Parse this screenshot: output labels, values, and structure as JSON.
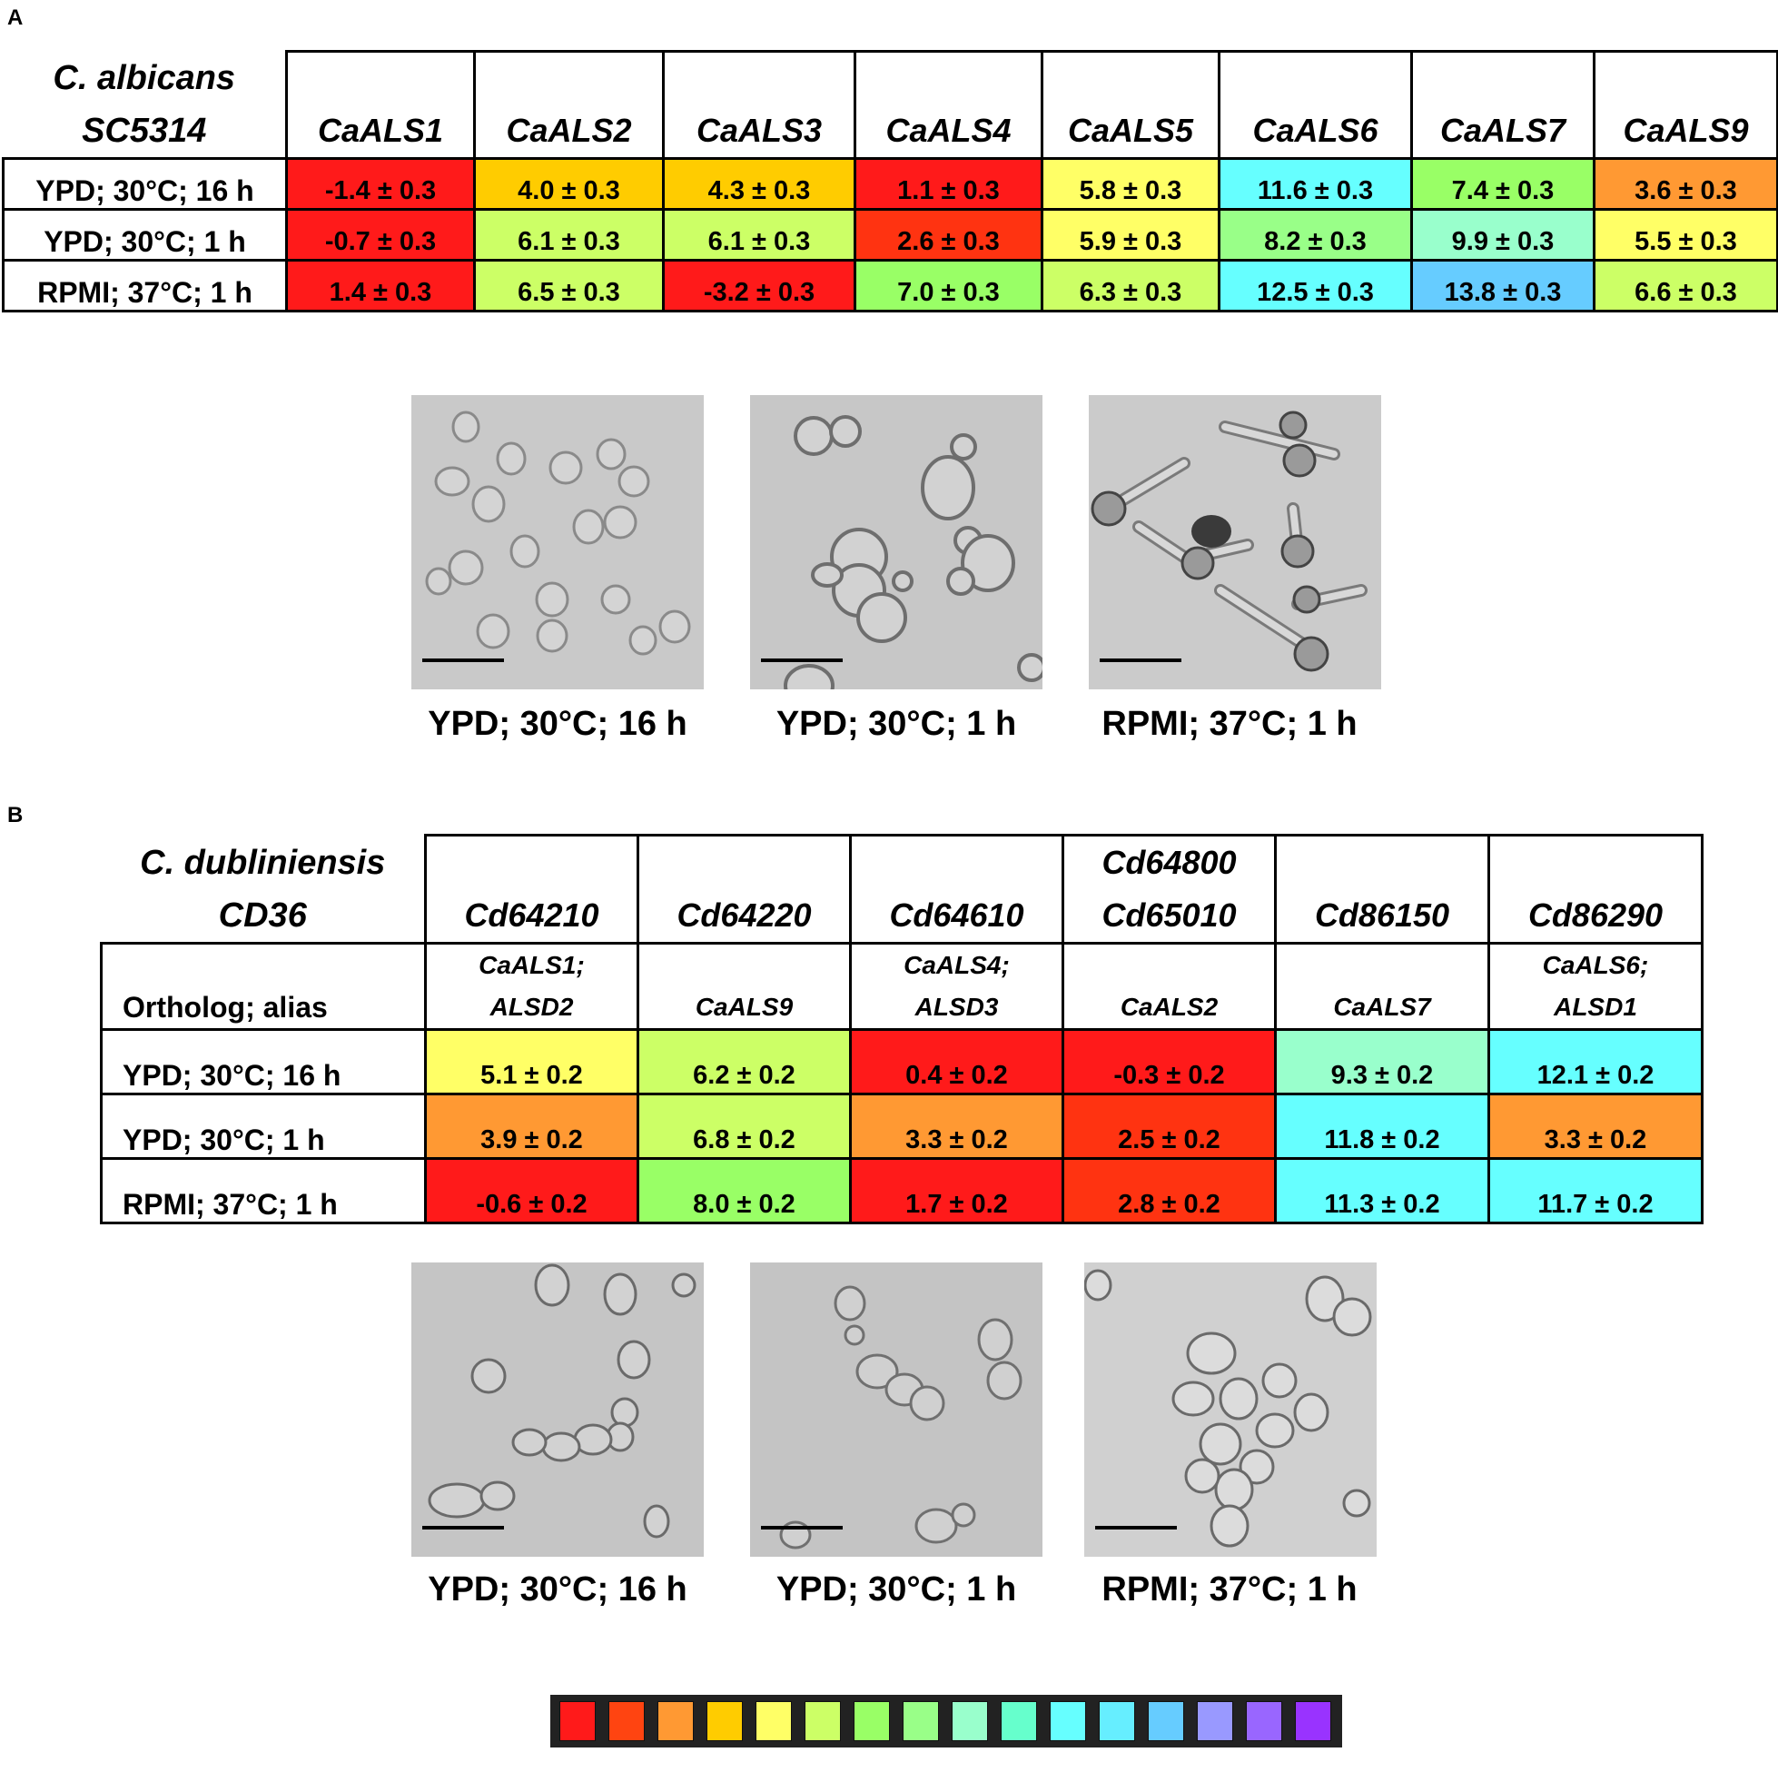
{
  "panels": {
    "a": {
      "label": "A",
      "corner": [
        "C. albicans",
        "SC5314"
      ],
      "genes": [
        "CaALS1",
        "CaALS2",
        "CaALS3",
        "CaALS4",
        "CaALS5",
        "CaALS6",
        "CaALS7",
        "CaALS9"
      ],
      "conditions": [
        "YPD; 30°C; 16 h",
        "YPD; 30°C; 1 h",
        "RPMI; 37°C; 1 h"
      ],
      "values": [
        [
          "-1.4 ± 0.3",
          "4.0 ± 0.3",
          "4.3 ± 0.3",
          "1.1 ± 0.3",
          "5.8 ± 0.3",
          "11.6 ± 0.3",
          "7.4 ± 0.3",
          "3.6 ± 0.3"
        ],
        [
          "-0.7 ± 0.3",
          "6.1 ± 0.3",
          "6.1 ± 0.3",
          "2.6 ± 0.3",
          "5.9 ± 0.3",
          "8.2 ± 0.3",
          "9.9 ± 0.3",
          "5.5 ± 0.3"
        ],
        [
          "1.4 ± 0.3",
          "6.5 ± 0.3",
          "-3.2 ± 0.3",
          "7.0 ± 0.3",
          "6.3 ± 0.3",
          "12.5 ± 0.3",
          "13.8 ± 0.3",
          "6.6 ± 0.3"
        ]
      ],
      "colors": [
        [
          "#ff1a1a",
          "#ffcc00",
          "#ffcc00",
          "#ff1a1a",
          "#ffff66",
          "#66ffff",
          "#99ff66",
          "#ff9933"
        ],
        [
          "#ff1a1a",
          "#ccff66",
          "#ccff66",
          "#ff3311",
          "#ffff66",
          "#99ff88",
          "#99ffcc",
          "#ffff66"
        ],
        [
          "#ff1a1a",
          "#ccff66",
          "#ff1a1a",
          "#99ff66",
          "#ccff66",
          "#66ffff",
          "#66ccff",
          "#ccff66"
        ]
      ],
      "captions": [
        "YPD; 30°C; 16 h",
        "YPD; 30°C; 1 h",
        "RPMI; 37°C; 1 h"
      ]
    },
    "b": {
      "label": "B",
      "corner": [
        "C. dubliniensis",
        "CD36"
      ],
      "genes": [
        [
          "Cd64210"
        ],
        [
          "Cd64220"
        ],
        [
          "Cd64610"
        ],
        [
          "Cd64800",
          "Cd65010"
        ],
        [
          "Cd86150"
        ],
        [
          "Cd86290"
        ]
      ],
      "ortholog_label": "Ortholog; alias",
      "aliases": [
        [
          "CaALS1;",
          "ALSD2"
        ],
        [
          "",
          "CaALS9"
        ],
        [
          "CaALS4;",
          "ALSD3"
        ],
        [
          "",
          "CaALS2"
        ],
        [
          "",
          "CaALS7"
        ],
        [
          "CaALS6;",
          "ALSD1"
        ]
      ],
      "conditions": [
        "YPD; 30°C; 16 h",
        "YPD; 30°C; 1 h",
        "RPMI; 37°C; 1 h"
      ],
      "values": [
        [
          "5.1 ± 0.2",
          "6.2 ± 0.2",
          "0.4 ± 0.2",
          "-0.3 ± 0.2",
          "9.3 ± 0.2",
          "12.1 ± 0.2"
        ],
        [
          "3.9 ± 0.2",
          "6.8 ± 0.2",
          "3.3 ± 0.2",
          "2.5 ± 0.2",
          "11.8 ± 0.2",
          "3.3 ± 0.2"
        ],
        [
          "-0.6 ± 0.2",
          "8.0 ± 0.2",
          "1.7 ± 0.2",
          "2.8 ± 0.2",
          "11.3 ± 0.2",
          "11.7 ± 0.2"
        ]
      ],
      "colors": [
        [
          "#ffff66",
          "#ccff66",
          "#ff1a1a",
          "#ff1a1a",
          "#99ffcc",
          "#66ffff"
        ],
        [
          "#ff9933",
          "#ccff66",
          "#ff9933",
          "#ff3311",
          "#66ffff",
          "#ff9933"
        ],
        [
          "#ff1a1a",
          "#99ff66",
          "#ff1a1a",
          "#ff3311",
          "#66ffff",
          "#66ffff"
        ]
      ],
      "captions": [
        "YPD; 30°C; 16 h",
        "YPD; 30°C; 1 h",
        "RPMI; 37°C; 1 h"
      ]
    }
  },
  "legend_colors": [
    "#ff1a1a",
    "#ff4411",
    "#ff9933",
    "#ffcc00",
    "#ffff66",
    "#ccff66",
    "#99ff66",
    "#99ff88",
    "#99ffcc",
    "#66ffcc",
    "#66ffff",
    "#66eeff",
    "#66ccff",
    "#9999ff",
    "#9966ff",
    "#9933ff"
  ]
}
